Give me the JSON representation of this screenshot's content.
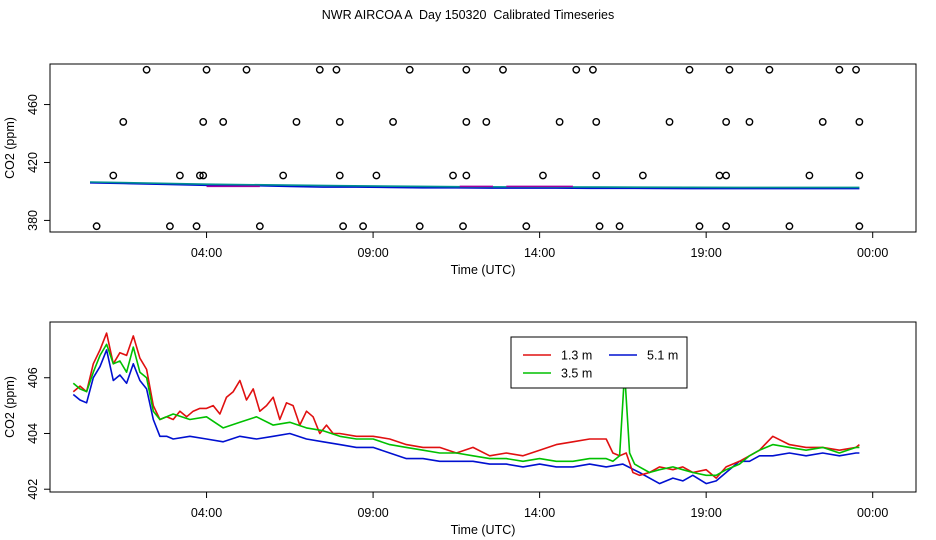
{
  "title": "NWR AIRCOA A  Day 150320  Calibrated Timeseries",
  "colors": {
    "red": "#e01010",
    "green": "#00c000",
    "blue": "#0010d0",
    "purple": "#a000a0",
    "teal": "#009090"
  },
  "chart_data": [
    {
      "type": "scatter",
      "xlabel": "Time (UTC)",
      "ylabel": "CO2 (ppm)",
      "xlim": [
        -0.7,
        25.3
      ],
      "ylim": [
        372,
        488
      ],
      "x_ticks": [
        {
          "v": 4,
          "label": "04:00"
        },
        {
          "v": 9,
          "label": "09:00"
        },
        {
          "v": 14,
          "label": "14:00"
        },
        {
          "v": 19,
          "label": "19:00"
        },
        {
          "v": 24,
          "label": "00:00"
        }
      ],
      "y_ticks": [
        {
          "v": 380,
          "label": "380"
        },
        {
          "v": 420,
          "label": "420"
        },
        {
          "v": 460,
          "label": "460"
        }
      ],
      "circles": {
        "484": [
          2.2,
          4.0,
          5.2,
          7.4,
          7.9,
          10.1,
          11.8,
          12.9,
          15.1,
          15.6,
          18.5,
          19.7,
          20.9,
          23.0,
          23.5
        ],
        "448": [
          1.5,
          3.9,
          4.5,
          6.7,
          8.0,
          9.6,
          11.8,
          12.4,
          14.6,
          15.7,
          17.9,
          19.6,
          20.3,
          22.5,
          23.6
        ],
        "411": [
          1.2,
          3.2,
          3.8,
          3.9,
          6.3,
          8.0,
          9.1,
          11.4,
          11.8,
          14.1,
          15.7,
          17.1,
          19.4,
          19.6,
          22.1,
          23.6
        ],
        "376": [
          0.7,
          2.9,
          3.7,
          5.6,
          8.1,
          8.7,
          10.4,
          11.7,
          13.6,
          15.8,
          16.4,
          18.8,
          19.6,
          21.5,
          23.6
        ]
      },
      "baseline_series": [
        {
          "color": "#0010d0",
          "x": [
            0.5,
            1.5,
            2.5,
            3.5,
            4.5,
            5.5,
            6.5,
            7.5,
            8.5,
            9.5,
            10.5,
            11.5,
            12.5,
            13.5,
            14.5,
            15.5,
            16.5,
            17.5,
            18.5,
            19.5,
            20.5,
            21.5,
            22.5,
            23.6
          ],
          "y": [
            406,
            405.5,
            405,
            404.5,
            404,
            404,
            403.5,
            403,
            403,
            402.8,
            402.5,
            402.5,
            402.3,
            402.3,
            402.3,
            402.2,
            402.2,
            402.1,
            402,
            402,
            402,
            402,
            402,
            402
          ]
        },
        {
          "color": "#009090",
          "x": [
            0.5,
            4,
            8,
            12,
            16,
            20,
            23.6
          ],
          "y": [
            406.5,
            405,
            404,
            403.2,
            403,
            402.8,
            402.8
          ]
        }
      ]
    },
    {
      "type": "line",
      "xlabel": "Time (UTC)",
      "ylabel": "CO2 (ppm)",
      "xlim": [
        -0.7,
        25.3
      ],
      "ylim": [
        401.9,
        408.0
      ],
      "x_ticks": [
        {
          "v": 4,
          "label": "04:00"
        },
        {
          "v": 9,
          "label": "09:00"
        },
        {
          "v": 14,
          "label": "14:00"
        },
        {
          "v": 19,
          "label": "19:00"
        },
        {
          "v": 24,
          "label": "00:00"
        }
      ],
      "y_ticks": [
        {
          "v": 402,
          "label": "402"
        },
        {
          "v": 404,
          "label": "404"
        },
        {
          "v": 406,
          "label": "406"
        }
      ],
      "legend": {
        "position": "top-right"
      },
      "series": [
        {
          "name": "1.3 m",
          "color": "#e01010",
          "x": [
            0.0,
            0.2,
            0.4,
            0.6,
            0.8,
            1.0,
            1.2,
            1.4,
            1.6,
            1.8,
            2.0,
            2.2,
            2.4,
            2.6,
            2.8,
            3.0,
            3.2,
            3.4,
            3.6,
            3.8,
            4.0,
            4.2,
            4.4,
            4.6,
            4.8,
            5.0,
            5.2,
            5.4,
            5.6,
            5.8,
            6.0,
            6.2,
            6.4,
            6.6,
            6.8,
            7.0,
            7.2,
            7.4,
            7.6,
            7.8,
            8.0,
            8.5,
            9.0,
            9.5,
            10.0,
            10.5,
            11.0,
            11.5,
            12.0,
            12.5,
            13.0,
            13.5,
            14.0,
            14.5,
            15.0,
            15.5,
            16.0,
            16.2,
            16.4,
            16.6,
            16.8,
            17.0,
            17.3,
            17.6,
            18.0,
            18.3,
            18.6,
            19.0,
            19.3,
            19.6,
            20.0,
            20.3,
            20.6,
            21.0,
            21.5,
            22.0,
            22.5,
            23.0,
            23.5,
            23.6
          ],
          "y": [
            405.5,
            405.7,
            405.5,
            406.5,
            407.0,
            407.6,
            406.5,
            406.9,
            406.8,
            407.5,
            406.7,
            406.3,
            405.0,
            404.5,
            404.6,
            404.5,
            404.8,
            404.6,
            404.8,
            404.9,
            404.9,
            405.0,
            404.7,
            405.3,
            405.5,
            405.9,
            405.2,
            405.6,
            404.8,
            405.0,
            405.3,
            404.5,
            405.1,
            405.0,
            404.3,
            404.8,
            404.6,
            404.0,
            404.3,
            404.0,
            404.0,
            403.9,
            403.9,
            403.8,
            403.6,
            403.5,
            403.5,
            403.3,
            403.5,
            403.2,
            403.3,
            403.2,
            403.4,
            403.6,
            403.7,
            403.8,
            403.8,
            403.3,
            403.2,
            403.3,
            402.6,
            402.5,
            402.6,
            402.8,
            402.7,
            402.8,
            402.6,
            402.7,
            402.4,
            402.8,
            403.0,
            403.2,
            403.4,
            403.9,
            403.6,
            403.5,
            403.5,
            403.4,
            403.5,
            403.6
          ]
        },
        {
          "name": "3.5 m",
          "color": "#00c000",
          "x": [
            0.0,
            0.2,
            0.4,
            0.6,
            0.8,
            1.0,
            1.2,
            1.4,
            1.6,
            1.8,
            2.0,
            2.2,
            2.4,
            2.6,
            2.8,
            3.0,
            3.5,
            4.0,
            4.5,
            5.0,
            5.5,
            6.0,
            6.5,
            7.0,
            7.5,
            8.0,
            8.5,
            9.0,
            9.5,
            10.0,
            10.5,
            11.0,
            11.5,
            12.0,
            12.5,
            13.0,
            13.5,
            14.0,
            14.5,
            15.0,
            15.5,
            16.0,
            16.2,
            16.4,
            16.55,
            16.7,
            16.85,
            17.0,
            17.3,
            17.6,
            18.0,
            18.3,
            18.6,
            19.0,
            19.3,
            19.6,
            20.0,
            20.3,
            20.6,
            21.0,
            21.5,
            22.0,
            22.5,
            23.0,
            23.5,
            23.6
          ],
          "y": [
            405.8,
            405.6,
            405.5,
            406.2,
            406.8,
            407.2,
            406.5,
            406.6,
            406.2,
            407.1,
            406.2,
            406.0,
            404.8,
            404.5,
            404.6,
            404.7,
            404.5,
            404.6,
            404.2,
            404.4,
            404.6,
            404.3,
            404.4,
            404.2,
            404.1,
            403.9,
            403.8,
            403.8,
            403.6,
            403.5,
            403.4,
            403.3,
            403.3,
            403.2,
            403.1,
            403.1,
            403.0,
            403.1,
            403.0,
            403.0,
            403.1,
            403.1,
            403.0,
            403.2,
            406.2,
            403.3,
            402.9,
            402.8,
            402.6,
            402.7,
            402.8,
            402.7,
            402.6,
            402.5,
            402.5,
            402.7,
            402.9,
            403.2,
            403.4,
            403.6,
            403.5,
            403.4,
            403.5,
            403.3,
            403.5,
            403.5
          ]
        },
        {
          "name": "5.1 m",
          "color": "#0010d0",
          "x": [
            0.0,
            0.2,
            0.4,
            0.6,
            0.8,
            1.0,
            1.2,
            1.4,
            1.6,
            1.8,
            2.0,
            2.2,
            2.4,
            2.6,
            2.8,
            3.0,
            3.5,
            4.0,
            4.5,
            5.0,
            5.5,
            6.0,
            6.5,
            7.0,
            7.5,
            8.0,
            8.5,
            9.0,
            9.5,
            10.0,
            10.5,
            11.0,
            11.5,
            12.0,
            12.5,
            13.0,
            13.5,
            14.0,
            14.5,
            15.0,
            15.5,
            16.0,
            16.5,
            17.0,
            17.3,
            17.6,
            18.0,
            18.3,
            18.6,
            19.0,
            19.3,
            19.6,
            20.0,
            20.3,
            20.6,
            21.0,
            21.5,
            22.0,
            22.5,
            23.0,
            23.5,
            23.6
          ],
          "y": [
            405.4,
            405.2,
            405.1,
            406.0,
            406.4,
            407.0,
            405.9,
            406.1,
            405.8,
            406.5,
            405.9,
            405.6,
            404.5,
            403.9,
            403.9,
            403.8,
            403.9,
            403.8,
            403.7,
            403.9,
            403.8,
            403.9,
            404.0,
            403.8,
            403.7,
            403.6,
            403.5,
            403.5,
            403.3,
            403.1,
            403.1,
            403.0,
            403.0,
            403.0,
            402.9,
            402.9,
            402.8,
            402.9,
            402.8,
            402.8,
            402.9,
            402.8,
            402.9,
            402.6,
            402.4,
            402.2,
            402.4,
            402.3,
            402.5,
            402.2,
            402.3,
            402.6,
            403.0,
            403.0,
            403.2,
            403.2,
            403.3,
            403.2,
            403.3,
            403.2,
            403.3,
            403.3
          ]
        }
      ]
    }
  ]
}
